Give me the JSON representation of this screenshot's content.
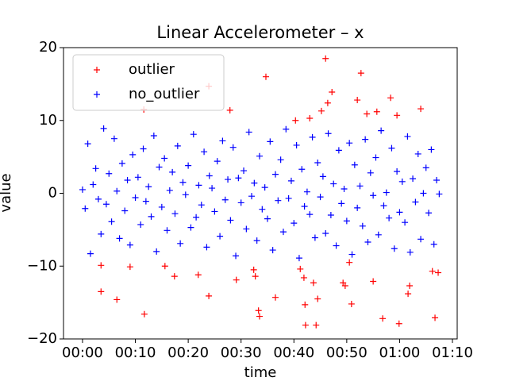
{
  "chart_data": {
    "type": "scatter",
    "title": "Linear Accelerometer – x",
    "x_label": "time",
    "y_label": "value",
    "xlim": [
      -3.6,
      70.9
    ],
    "ylim": [
      -20,
      20
    ],
    "xticks": [
      {
        "value": 0,
        "label": "00:00"
      },
      {
        "value": 10,
        "label": "00:10"
      },
      {
        "value": 20,
        "label": "00:20"
      },
      {
        "value": 30,
        "label": "00:30"
      },
      {
        "value": 40,
        "label": "00:40"
      },
      {
        "value": 50,
        "label": "00:50"
      },
      {
        "value": 60,
        "label": "01:00"
      },
      {
        "value": 70,
        "label": "01:10"
      }
    ],
    "yticks": [
      {
        "value": -20,
        "label": "−20"
      },
      {
        "value": -10,
        "label": "−10"
      },
      0,
      10,
      20
    ],
    "grid": false,
    "legend": "upper left",
    "series": [
      {
        "name": "outlier",
        "color": "#ff0000",
        "x": [
          3.5,
          3.5,
          6.5,
          9.0,
          11.6,
          11.7,
          15.6,
          17.4,
          21.9,
          23.9,
          23.9,
          27.9,
          29.1,
          32.4,
          32.7,
          33.3,
          33.5,
          34.7,
          36.5,
          40.3,
          41.2,
          41.9,
          42.1,
          42.2,
          43.0,
          43.7,
          44.2,
          44.5,
          45.2,
          46.0,
          46.4,
          47.2,
          49.3,
          49.7,
          50.5,
          50.9,
          52.0,
          52.7,
          53.8,
          55.0,
          55.7,
          56.8,
          58.3,
          59.5,
          59.9,
          61.6,
          61.9,
          64.0,
          66.2,
          66.7,
          67.3
        ],
        "values": [
          -9.9,
          -13.5,
          -14.6,
          -10.1,
          11.5,
          -16.6,
          -10.0,
          -11.4,
          -11.2,
          14.7,
          -14.1,
          11.4,
          -11.9,
          -10.5,
          -11.4,
          -16.1,
          -16.9,
          16.0,
          -14.3,
          10.0,
          -10.4,
          -11.6,
          -15.3,
          -18.1,
          10.3,
          -12.3,
          -18.1,
          -14.5,
          11.3,
          18.5,
          12.4,
          13.9,
          -12.3,
          -12.7,
          -9.5,
          -15.2,
          12.8,
          16.5,
          10.9,
          -12.1,
          11.2,
          -17.2,
          13.1,
          10.7,
          -17.9,
          -13.8,
          -12.7,
          11.6,
          -10.7,
          -17.1,
          -10.9
        ]
      },
      {
        "name": "no_outlier",
        "color": "#0000ff",
        "x": [
          0,
          0.5,
          1,
          1.5,
          2,
          2.5,
          3,
          3.5,
          4,
          4.5,
          5,
          5.5,
          6,
          6.5,
          7,
          7.5,
          8,
          8.5,
          9,
          9.5,
          10,
          10.5,
          11,
          11.5,
          12,
          12.5,
          13,
          13.5,
          14,
          14.5,
          15,
          15.5,
          16,
          16.5,
          17,
          17.5,
          18,
          18.5,
          19,
          19.5,
          20,
          20.5,
          21,
          21.5,
          22,
          22.5,
          23,
          23.5,
          24,
          24.5,
          25,
          25.5,
          26,
          26.5,
          27,
          27.5,
          28,
          28.5,
          29,
          29.5,
          30,
          30.5,
          31,
          31.5,
          32,
          32.5,
          33,
          33.5,
          34,
          34.5,
          35,
          35.5,
          36,
          36.5,
          37,
          37.5,
          38,
          38.5,
          39,
          39.5,
          40,
          40.5,
          41,
          41.5,
          42,
          42.5,
          43,
          43.5,
          44,
          44.5,
          45,
          45.5,
          46,
          46.5,
          47,
          47.5,
          48,
          48.5,
          49,
          49.5,
          50,
          50.5,
          51,
          51.5,
          52,
          52.5,
          53,
          53.5,
          54,
          54.5,
          55,
          55.5,
          56,
          56.5,
          57,
          57.5,
          58,
          58.5,
          59,
          59.5,
          60,
          60.5,
          61,
          61.5,
          62,
          62.5,
          63,
          63.5,
          64,
          64.5,
          65,
          65.5,
          66,
          66.5,
          67,
          67.5
        ],
        "values": [
          0.5,
          -2.1,
          6.8,
          -8.3,
          1.2,
          3.4,
          -0.8,
          -5.6,
          8.9,
          -1.5,
          2.7,
          -3.9,
          7.5,
          0.3,
          -6.2,
          4.1,
          -2.4,
          1.8,
          -7.1,
          5.3,
          -0.6,
          2.2,
          -4.3,
          6.1,
          -1.1,
          0.9,
          -3.2,
          7.9,
          -8.0,
          3.6,
          -1.9,
          4.8,
          -5.1,
          0.4,
          2.9,
          -2.8,
          6.5,
          -6.9,
          1.5,
          -0.2,
          3.8,
          -4.7,
          8.1,
          -3.3,
          1.1,
          -1.6,
          5.7,
          -7.4,
          2.4,
          0.7,
          -2.5,
          4.4,
          -5.9,
          7.2,
          -0.9,
          1.9,
          -3.7,
          6.3,
          -8.6,
          2.1,
          -1.3,
          3.1,
          -4.9,
          8.4,
          -0.4,
          1.4,
          -6.5,
          5.1,
          -2.2,
          0.8,
          -3.5,
          7.1,
          -7.8,
          2.6,
          -1.0,
          4.6,
          -5.3,
          8.8,
          -0.7,
          1.7,
          -4.1,
          6.6,
          -8.9,
          3.3,
          -1.8,
          0.2,
          -2.9,
          7.7,
          -6.1,
          4.2,
          -0.5,
          2.3,
          -5.5,
          8.2,
          -3.0,
          1.3,
          -7.2,
          5.9,
          -1.4,
          0.6,
          -3.8,
          6.9,
          -8.4,
          3.9,
          -2.0,
          1.0,
          -4.5,
          7.4,
          -6.7,
          2.8,
          -0.3,
          4.9,
          -5.7,
          8.6,
          -1.7,
          0.1,
          -3.4,
          6.2,
          -7.6,
          3.0,
          -2.6,
          1.6,
          -4.0,
          7.8,
          -8.1,
          2.0,
          -1.2,
          5.4,
          -6.3,
          0.0,
          3.5,
          -2.7,
          6.0,
          -7.0,
          1.8,
          -0.1
        ]
      }
    ]
  }
}
